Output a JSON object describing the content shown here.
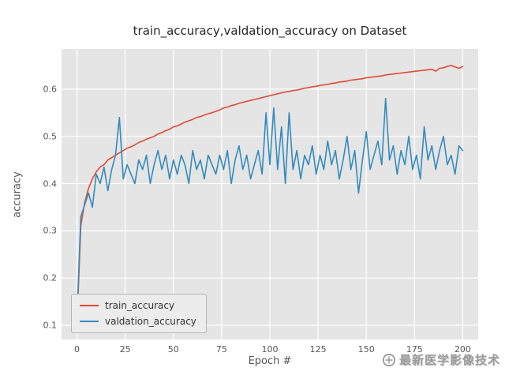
{
  "figure": {
    "title": "train_accuracy,valdation_accuracy on Dataset",
    "xlabel": "Epoch #",
    "ylabel": "accuracy"
  },
  "watermark": {
    "text": "最新医学影像技术",
    "icon": "circle-logo"
  },
  "chart_data": {
    "type": "line",
    "title": "train_accuracy,valdation_accuracy on Dataset",
    "xlabel": "Epoch #",
    "ylabel": "accuracy",
    "xlim": [
      -8,
      208
    ],
    "ylim": [
      0.07,
      0.685
    ],
    "x_ticks": [
      0,
      25,
      50,
      75,
      100,
      125,
      150,
      175,
      200
    ],
    "y_ticks": [
      0.1,
      0.2,
      0.3,
      0.4,
      0.5,
      0.6
    ],
    "grid": true,
    "grid_color": "#FFFFFF",
    "background": "#E5E5E5",
    "legend_position": "lower left",
    "x": [
      0,
      2,
      4,
      6,
      8,
      10,
      12,
      14,
      16,
      18,
      20,
      22,
      24,
      26,
      28,
      30,
      32,
      34,
      36,
      38,
      40,
      42,
      44,
      46,
      48,
      50,
      52,
      54,
      56,
      58,
      60,
      62,
      64,
      66,
      68,
      70,
      72,
      74,
      76,
      78,
      80,
      82,
      84,
      86,
      88,
      90,
      92,
      94,
      96,
      98,
      100,
      102,
      104,
      106,
      108,
      110,
      112,
      114,
      116,
      118,
      120,
      122,
      124,
      126,
      128,
      130,
      132,
      134,
      136,
      138,
      140,
      142,
      144,
      146,
      148,
      150,
      152,
      154,
      156,
      158,
      160,
      162,
      164,
      166,
      168,
      170,
      172,
      174,
      176,
      178,
      180,
      182,
      184,
      186,
      188,
      190,
      192,
      194,
      196,
      198,
      200
    ],
    "series": [
      {
        "name": "train_accuracy",
        "color": "#E24A33",
        "values": [
          0.105,
          0.31,
          0.36,
          0.39,
          0.41,
          0.425,
          0.435,
          0.44,
          0.45,
          0.455,
          0.46,
          0.465,
          0.47,
          0.475,
          0.478,
          0.482,
          0.487,
          0.49,
          0.494,
          0.497,
          0.5,
          0.505,
          0.508,
          0.512,
          0.515,
          0.52,
          0.522,
          0.526,
          0.53,
          0.533,
          0.536,
          0.54,
          0.542,
          0.545,
          0.548,
          0.55,
          0.553,
          0.556,
          0.56,
          0.562,
          0.565,
          0.567,
          0.57,
          0.572,
          0.574,
          0.576,
          0.578,
          0.58,
          0.582,
          0.584,
          0.586,
          0.588,
          0.59,
          0.592,
          0.594,
          0.595,
          0.597,
          0.598,
          0.6,
          0.602,
          0.603,
          0.605,
          0.606,
          0.608,
          0.609,
          0.61,
          0.612,
          0.613,
          0.615,
          0.616,
          0.617,
          0.619,
          0.62,
          0.621,
          0.622,
          0.624,
          0.625,
          0.626,
          0.627,
          0.628,
          0.63,
          0.631,
          0.632,
          0.633,
          0.634,
          0.635,
          0.636,
          0.637,
          0.638,
          0.639,
          0.64,
          0.641,
          0.642,
          0.638,
          0.644,
          0.645,
          0.648,
          0.65,
          0.647,
          0.644,
          0.648
        ]
      },
      {
        "name": "valdation_accuracy",
        "color": "#348ABD",
        "values": [
          0.12,
          0.33,
          0.355,
          0.38,
          0.35,
          0.42,
          0.4,
          0.435,
          0.385,
          0.43,
          0.46,
          0.54,
          0.41,
          0.44,
          0.42,
          0.4,
          0.45,
          0.43,
          0.46,
          0.4,
          0.44,
          0.47,
          0.43,
          0.46,
          0.41,
          0.45,
          0.42,
          0.46,
          0.44,
          0.4,
          0.47,
          0.43,
          0.45,
          0.41,
          0.46,
          0.44,
          0.42,
          0.46,
          0.43,
          0.47,
          0.4,
          0.45,
          0.48,
          0.43,
          0.46,
          0.41,
          0.44,
          0.47,
          0.42,
          0.55,
          0.44,
          0.56,
          0.43,
          0.52,
          0.4,
          0.55,
          0.43,
          0.47,
          0.41,
          0.46,
          0.44,
          0.48,
          0.42,
          0.46,
          0.43,
          0.49,
          0.44,
          0.47,
          0.41,
          0.45,
          0.5,
          0.43,
          0.47,
          0.38,
          0.45,
          0.51,
          0.43,
          0.46,
          0.49,
          0.44,
          0.58,
          0.45,
          0.48,
          0.42,
          0.47,
          0.44,
          0.5,
          0.43,
          0.46,
          0.41,
          0.52,
          0.45,
          0.48,
          0.43,
          0.47,
          0.5,
          0.44,
          0.46,
          0.42,
          0.48,
          0.47
        ]
      }
    ]
  }
}
